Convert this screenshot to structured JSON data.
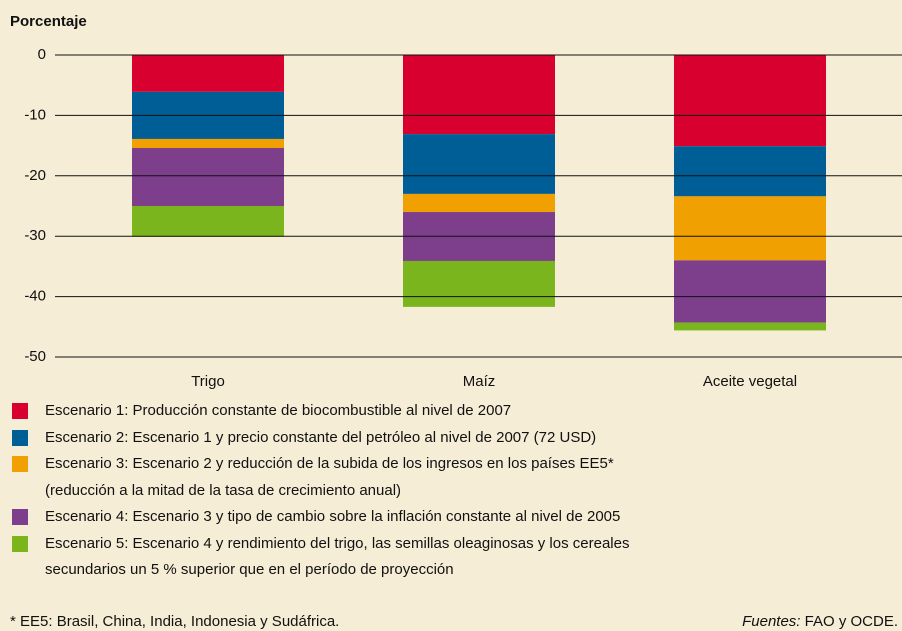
{
  "chart_data": {
    "type": "stacked_bar",
    "y_label": "Porcentaje",
    "categories": [
      "Trigo",
      "Maíz",
      "Aceite vegetal"
    ],
    "series": [
      {
        "name": "Escenario 1: Producción constante de biocombustible al nivel de 2007",
        "color": "#d7002e",
        "values": [
          -6.1,
          -13.1,
          -15.1
        ]
      },
      {
        "name": "Escenario 2: Escenario 1 y precio constante del petróleo al nivel de 2007 (72 USD)",
        "color": "#005e96",
        "values": [
          -7.8,
          -9.9,
          -8.3
        ]
      },
      {
        "name": "Escenario 3: Escenario 2 y reducción de la subida de los ingresos en los países EE5*\n(reducción a la mitad de la tasa de crecimiento anual)",
        "color": "#f0a000",
        "values": [
          -1.5,
          -3.0,
          -10.6
        ]
      },
      {
        "name": "Escenario 4: Escenario 3 y tipo de cambio sobre la inflación constante al nivel de 2005",
        "color": "#7d3f8c",
        "values": [
          -9.6,
          -8.1,
          -10.3
        ]
      },
      {
        "name": "Escenario 5: Escenario 4 y rendimiento del trigo, las semillas oleaginosas y los cereales\nsecundarios un 5 % superior que en el período de proyección",
        "color": "#7ab51d",
        "values": [
          -5.1,
          -7.6,
          -1.3
        ]
      }
    ],
    "ylim": [
      -50,
      0
    ],
    "yticks": [
      0,
      -10,
      -20,
      -30,
      -40,
      -50
    ],
    "grid": true,
    "footnote": "* EE5: Brasil, China, India, Indonesia y Sudáfrica.",
    "source_label": "Fuentes:",
    "source": "FAO y OCDE."
  }
}
